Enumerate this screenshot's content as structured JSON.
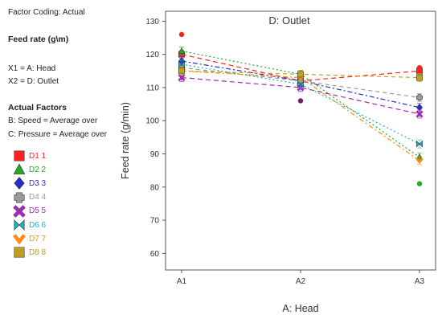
{
  "sidebar": {
    "factor_coding": "Factor Coding: Actual",
    "response_heading": "Feed rate (g\\m)",
    "x1": "X1 = A: Head",
    "x2": "X2 = D: Outlet",
    "actual_factors_heading": "Actual Factors",
    "speed": "B: Speed = Average over",
    "pressure": "C: Pressure = Average over"
  },
  "chart_data": {
    "type": "line",
    "title": "D: Outlet",
    "xlabel": "A: Head",
    "ylabel": "Feed rate (g/min)",
    "categories": [
      "A1",
      "A2",
      "A3"
    ],
    "ylim": [
      55,
      133
    ],
    "yticks": [
      60,
      70,
      80,
      90,
      100,
      110,
      120,
      130
    ],
    "grid": false,
    "legend": "left",
    "series": [
      {
        "name": "D1 1",
        "values": [
          120,
          112,
          115
        ],
        "color": "#ff2020",
        "marker": "square",
        "dash": "6,4"
      },
      {
        "name": "D2 2",
        "values": [
          121,
          114,
          89
        ],
        "color": "#22aa22",
        "marker": "triangle",
        "dash": "2,3"
      },
      {
        "name": "D3 3",
        "values": [
          118,
          112,
          104
        ],
        "color": "#2a2ad0",
        "marker": "diamond",
        "dash": "6,3,2,3"
      },
      {
        "name": "D4 4",
        "values": [
          116,
          112,
          107
        ],
        "color": "#9a9a9a",
        "marker": "cross",
        "dash": "5,4"
      },
      {
        "name": "D5 5",
        "values": [
          113,
          110,
          102
        ],
        "color": "#9b2fae",
        "marker": "x",
        "dash": "6,4"
      },
      {
        "name": "D6 6",
        "values": [
          117,
          111,
          93
        ],
        "color": "#1ab0c8",
        "marker": "bowtie",
        "dash": "2,3"
      },
      {
        "name": "D7 7",
        "values": [
          115,
          113,
          88
        ],
        "color": "#ff8a1c",
        "marker": "chevron",
        "dash": "6,3,2,3"
      },
      {
        "name": "D8 8",
        "values": [
          115,
          114,
          113
        ],
        "color": "#c0a020",
        "marker": "square",
        "dash": "5,4"
      }
    ],
    "observations": [
      {
        "x": "A1",
        "y": 126,
        "color": "#ff2020"
      },
      {
        "x": "A2",
        "y": 106,
        "color": "#7a1a6a"
      },
      {
        "x": "A3",
        "y": 116,
        "color": "#ff2020"
      },
      {
        "x": "A3",
        "y": 81,
        "color": "#22aa22"
      }
    ]
  }
}
